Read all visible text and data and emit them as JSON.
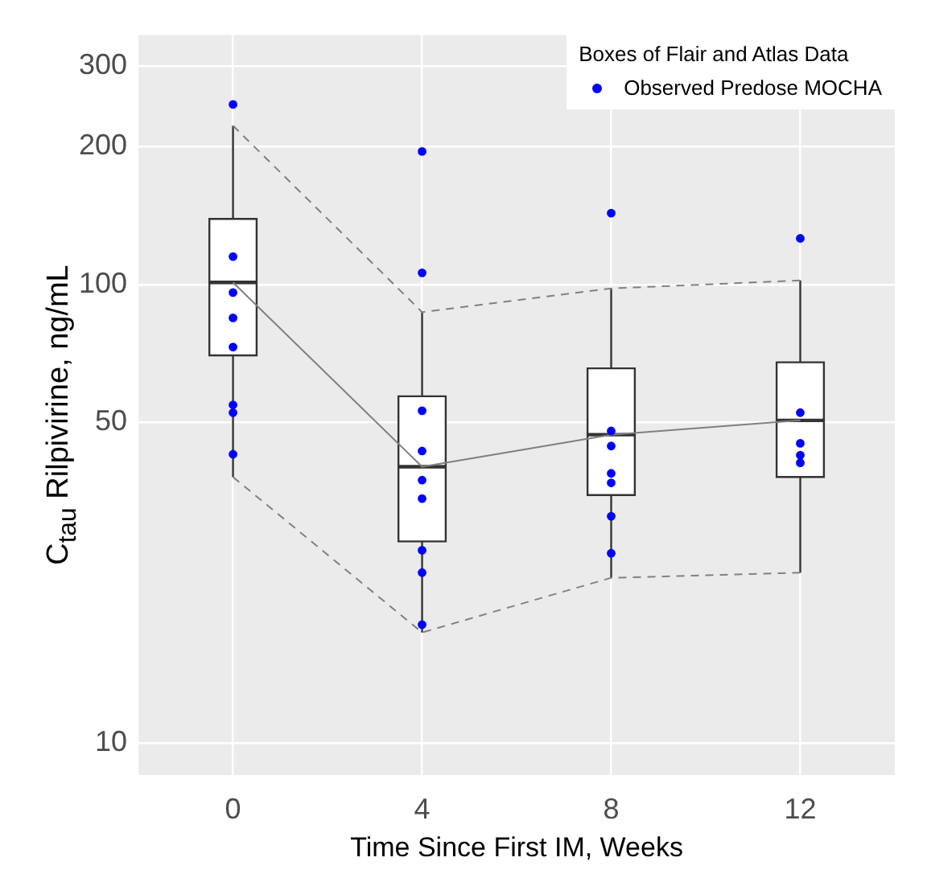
{
  "chart_data": {
    "type": "box",
    "xlabel": "Time Since First IM, Weeks",
    "ylabel": "C$_{tau}$ Rilpivirine, ng/mL",
    "legend_title": "Boxes of Flair and Atlas Data",
    "categories": [
      "0",
      "4",
      "8",
      "12"
    ],
    "boxes": [
      {
        "low": 38,
        "q1": 70,
        "median": 101,
        "q3": 139,
        "high": 222
      },
      {
        "low": 17.4,
        "q1": 27.5,
        "median": 40,
        "q3": 57,
        "high": 87
      },
      {
        "low": 22.9,
        "q1": 34.7,
        "median": 47,
        "q3": 65.6,
        "high": 98
      },
      {
        "low": 23.5,
        "q1": 38,
        "median": 50.5,
        "q3": 67.6,
        "high": 102
      }
    ],
    "series": [
      {
        "name": "Observed Predose MOCHA",
        "type": "scatter",
        "marker": "circle",
        "color": "#0000ff",
        "x": [
          "0",
          "0",
          "0",
          "0",
          "0",
          "0",
          "0",
          "0",
          "4",
          "4",
          "4",
          "4",
          "4",
          "4",
          "4",
          "4",
          "4",
          "8",
          "8",
          "8",
          "8",
          "8",
          "8",
          "8",
          "12",
          "12",
          "12",
          "12",
          "12",
          "12"
        ],
        "values": [
          247,
          115,
          96,
          84.5,
          73,
          54.6,
          52.5,
          42.6,
          195,
          106,
          53,
          43.3,
          37.4,
          34.1,
          26.3,
          23.5,
          18.1,
          143,
          47.9,
          44.4,
          38.7,
          36.9,
          31.2,
          25.9,
          126,
          52.5,
          45,
          42.4,
          null,
          40.8
        ]
      },
      {
        "type": "line",
        "marker": "none",
        "line_style": "dashed",
        "color": "#808080",
        "values": [
          222,
          87,
          98,
          102
        ]
      },
      {
        "type": "line",
        "marker": "none",
        "line_style": "dashed",
        "color": "#808080",
        "values": [
          38,
          17.4,
          22.9,
          23.5
        ]
      },
      {
        "type": "line",
        "marker": "none",
        "line_style": "solid",
        "color": "#808080",
        "values": [
          101,
          40,
          47,
          50.5
        ]
      }
    ],
    "log": "y",
    "ylim": [
      8.5,
      350
    ],
    "yticks": [
      10,
      50,
      100,
      200,
      300
    ],
    "grid": true,
    "legend": "top right"
  }
}
